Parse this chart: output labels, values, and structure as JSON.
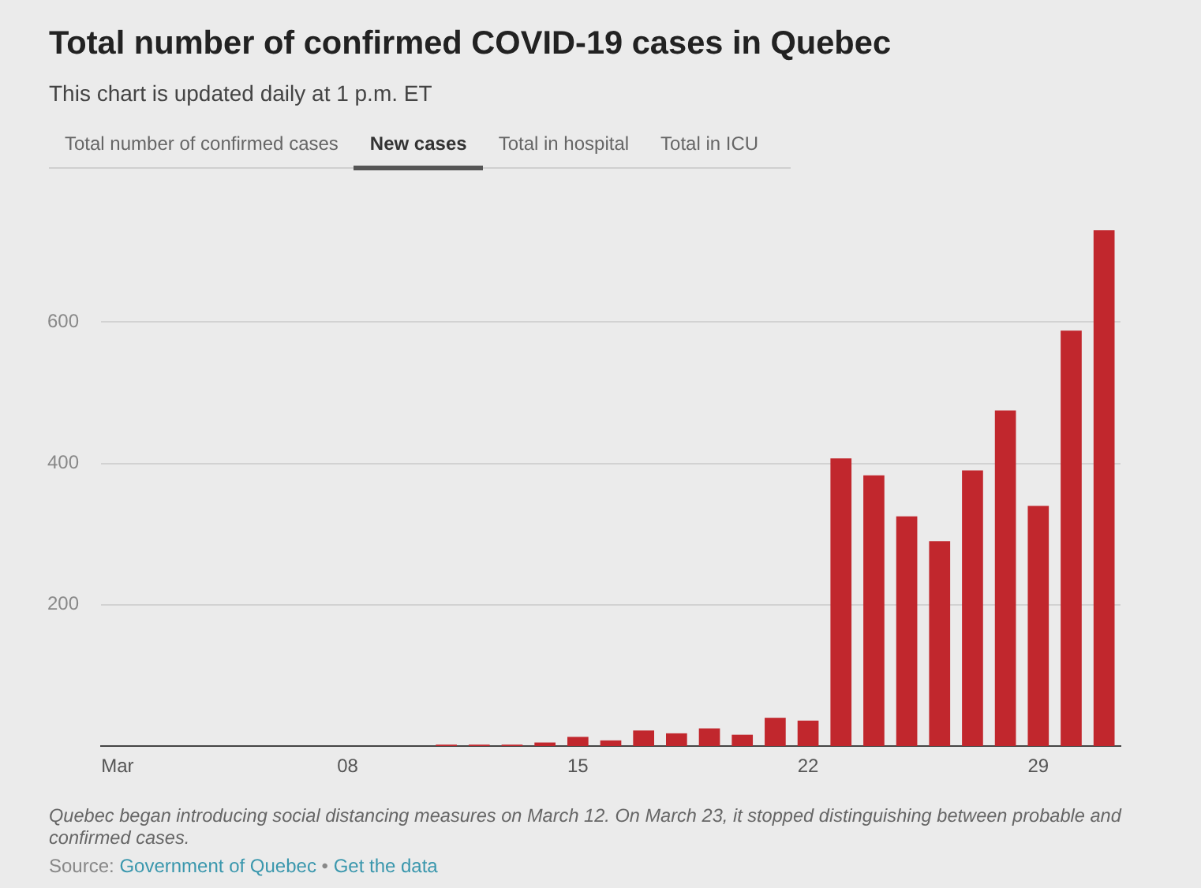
{
  "chart_data": {
    "type": "bar",
    "title": "Total number of confirmed COVID-19 cases in Quebec",
    "subtitle": "This chart is updated daily at 1 p.m. ET",
    "categories": [
      "Mar",
      null,
      null,
      null,
      null,
      null,
      null,
      "08",
      null,
      null,
      null,
      null,
      null,
      null,
      "15",
      null,
      null,
      null,
      null,
      null,
      null,
      "22",
      null,
      null,
      null,
      null,
      null,
      null,
      "29",
      null,
      null
    ],
    "values": [
      0,
      0,
      0,
      0,
      0,
      0,
      0,
      0,
      0,
      0,
      2,
      2,
      2,
      5,
      13,
      8,
      22,
      18,
      25,
      16,
      40,
      36,
      407,
      383,
      325,
      290,
      390,
      475,
      340,
      588,
      730
    ],
    "color": "#c1272d",
    "ylim": [
      0,
      730
    ],
    "yticks": [
      200,
      400,
      600
    ],
    "grid": "y",
    "annotations": [
      "Total number of confirmed cases",
      "New cases",
      "Total in hospital",
      "Total in ICU",
      "Quebec began introducing social distancing measures on March 12. On March 23, it stopped distinguishing between probable and confirmed cases.",
      "Source: Government of Quebec • Get the data"
    ]
  }
}
